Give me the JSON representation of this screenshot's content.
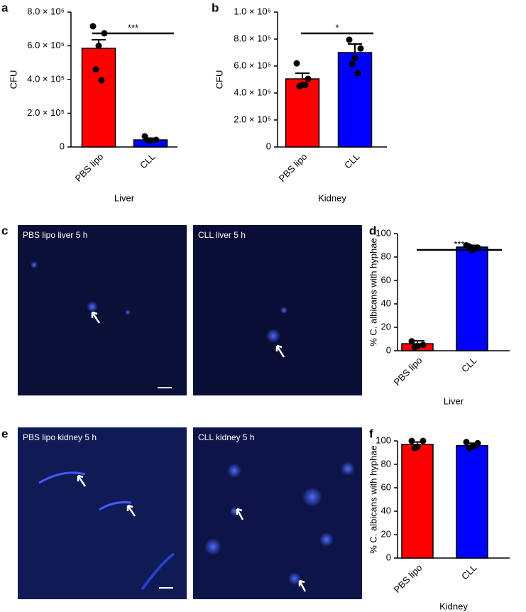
{
  "chart_data": [
    {
      "type": "bar",
      "panel": "a",
      "ylabel": "CFU",
      "xlabel": "Liver",
      "significance": "***",
      "categories": [
        "PBS lipo",
        "CLL"
      ],
      "colors": [
        "#ff0000",
        "#0000ff"
      ],
      "values": [
        585000,
        42000
      ],
      "errors": [
        51000,
        10000
      ],
      "points": [
        [
          716000,
          674000,
          600000,
          460000,
          396000
        ],
        [
          63000,
          42000,
          38000,
          40000
        ]
      ],
      "ylim": [
        0,
        800000
      ],
      "yticks": [
        0,
        {
          "value": 200000,
          "label": "2.0 × 10⁵"
        },
        {
          "value": 400000,
          "label": "4.0 × 10⁵"
        },
        {
          "value": 600000,
          "label": "6.0 × 10⁵"
        },
        {
          "value": 800000,
          "label": "8.0 × 10⁵"
        }
      ]
    },
    {
      "type": "bar",
      "panel": "b",
      "ylabel": "CFU",
      "xlabel": "Kidney",
      "significance": "*",
      "categories": [
        "PBS lipo",
        "CLL"
      ],
      "colors": [
        "#ff0000",
        "#0000ff"
      ],
      "values": [
        505000,
        700000
      ],
      "errors": [
        42000,
        63000
      ],
      "points": [
        [
          620000,
          505000,
          460000,
          450000,
          460000
        ],
        [
          795000,
          730000,
          660000,
          615000,
          547000
        ]
      ],
      "ylim": [
        0,
        1000000
      ],
      "yticks": [
        0,
        {
          "value": 200000,
          "label": "2.0 × 10⁵"
        },
        {
          "value": 400000,
          "label": "4.0 × 10⁵"
        },
        {
          "value": 600000,
          "label": "6.0 × 10⁵"
        },
        {
          "value": 800000,
          "label": "8.0 × 10⁵"
        },
        {
          "value": 1000000,
          "label": "1.0 × 10⁶"
        }
      ]
    },
    {
      "type": "bar",
      "panel": "d",
      "ylabel": "% C. albicans with hyphae",
      "xlabel": "Liver",
      "significance": "***",
      "categories": [
        "PBS lipo",
        "CLL"
      ],
      "colors": [
        "#ff0000",
        "#0000ff"
      ],
      "values": [
        6,
        88.5
      ],
      "errors": [
        2.5,
        1.5
      ],
      "points": [
        [
          8,
          5,
          4,
          3
        ],
        [
          90,
          88,
          86,
          89,
          87
        ]
      ],
      "ylim": [
        0,
        100
      ],
      "yticks": [
        0,
        20,
        40,
        60,
        80,
        100
      ]
    },
    {
      "type": "bar",
      "panel": "f",
      "ylabel": "% C. albicans with hyphae",
      "xlabel": "Kidney",
      "categories": [
        "PBS lipo",
        "CLL"
      ],
      "colors": [
        "#ff0000",
        "#0000ff"
      ],
      "values": [
        97,
        96
      ],
      "errors": [
        2,
        2
      ],
      "points": [
        [
          100,
          100,
          95,
          94
        ],
        [
          99,
          98,
          95,
          94,
          96
        ]
      ],
      "ylim": [
        0,
        100
      ],
      "yticks": [
        0,
        20,
        40,
        60,
        80,
        100
      ]
    }
  ],
  "images": [
    {
      "panel": "c",
      "captions": [
        "PBS lipo liver 5 h",
        "CLL liver 5 h"
      ]
    },
    {
      "panel": "e",
      "captions": [
        "PBS lipo kidney 5 h",
        "CLL kidney 5 h"
      ]
    }
  ]
}
